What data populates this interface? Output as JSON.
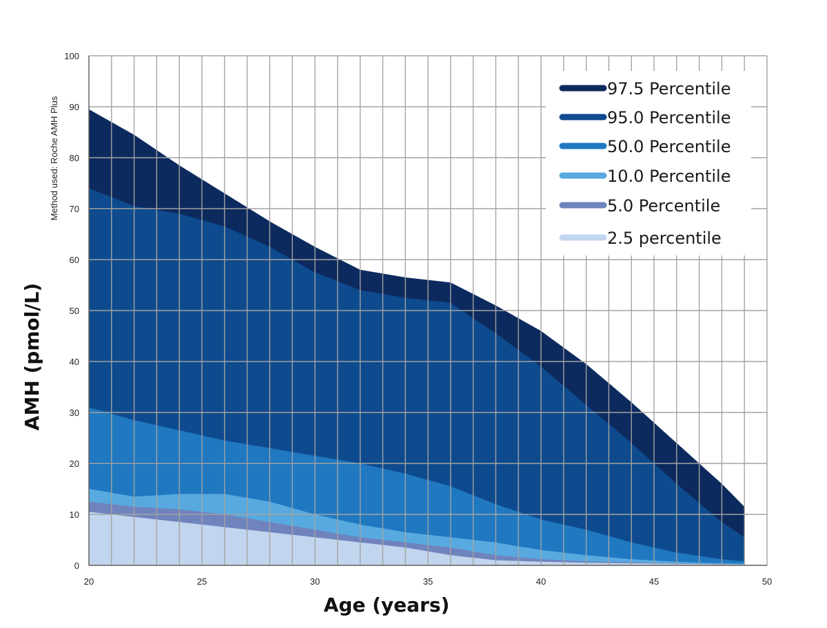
{
  "chart_data": {
    "type": "area",
    "xlabel": "Age (years)",
    "ylabel": "AMH (pmol/L)",
    "annotation": "Method used: Roche AMH Plus",
    "xlim": [
      20,
      50
    ],
    "ylim": [
      0,
      100
    ],
    "x_ticks": [
      "20",
      "25",
      "30",
      "35",
      "40",
      "45",
      "50"
    ],
    "y_ticks": [
      "0",
      "10",
      "20",
      "30",
      "40",
      "50",
      "60",
      "70",
      "80",
      "90",
      "100"
    ],
    "grid": true,
    "legend_position": "top-right",
    "x": [
      20,
      22,
      24,
      26,
      28,
      30,
      32,
      34,
      36,
      38,
      40,
      42,
      44,
      46,
      48,
      49
    ],
    "series": [
      {
        "name": "97.5 Percentile",
        "color": "#0d2a5e",
        "values": [
          89.5,
          84.5,
          78.5,
          73,
          67.5,
          62.5,
          58,
          56.5,
          55.5,
          51,
          46,
          39.5,
          32,
          24,
          16,
          11.5
        ]
      },
      {
        "name": "95.0 Percentile",
        "color": "#0e4a8e",
        "values": [
          74,
          70.5,
          69,
          66.5,
          62.5,
          57.5,
          54,
          52.5,
          51.5,
          45.5,
          39,
          31.5,
          24,
          16,
          8.5,
          5.5
        ]
      },
      {
        "name": "50.0 Percentile",
        "color": "#1f78c0",
        "values": [
          31,
          28.5,
          26.5,
          24.5,
          23,
          21.5,
          20,
          18,
          15.5,
          12,
          9,
          7,
          4.5,
          2.5,
          1.2,
          0.8
        ]
      },
      {
        "name": "10.0 Percentile",
        "color": "#57a9df",
        "values": [
          15,
          13.5,
          14,
          14,
          12.5,
          10,
          8,
          6.5,
          5.5,
          4.5,
          3,
          2,
          1.2,
          0.7,
          0.4,
          0.3
        ]
      },
      {
        "name": "5.0 Percentile",
        "color": "#6f83bd",
        "values": [
          12.5,
          11.5,
          11,
          10,
          8.5,
          7,
          5.5,
          4.5,
          3.5,
          2,
          1.2,
          0.8,
          0.6,
          0.4,
          0.3,
          0.2
        ]
      },
      {
        "name": "2.5 percentile",
        "color": "#c2d5ee",
        "values": [
          10.5,
          9.5,
          8.5,
          7.5,
          6.5,
          5.5,
          4.5,
          3.5,
          2,
          1,
          0.7,
          0.5,
          0.4,
          0.3,
          0.2,
          0.2
        ]
      }
    ]
  }
}
